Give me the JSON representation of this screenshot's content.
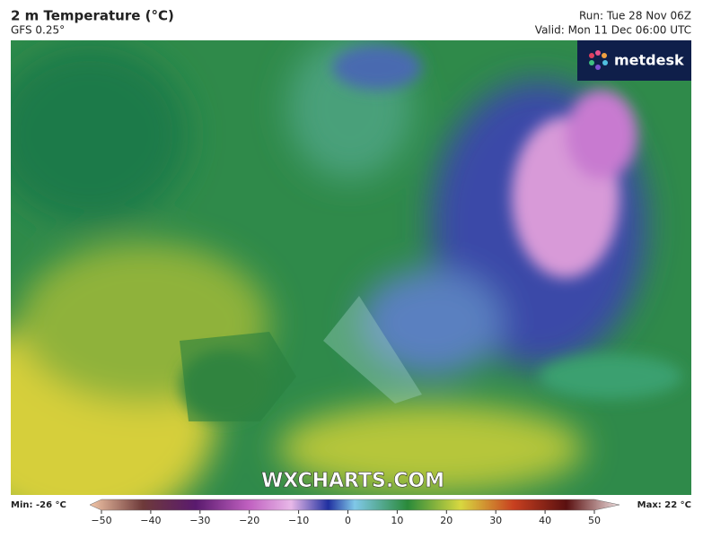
{
  "header": {
    "title": "2 m Temperature (°C)",
    "subtitle": "GFS 0.25°",
    "run": "Run: Tue 28 Nov 06Z",
    "valid": "Valid: Mon 11 Dec 06:00 UTC"
  },
  "logo": "metdesk",
  "watermark": "WXCHARTS.COM",
  "colorbar": {
    "min_label": "Min: -26 °C",
    "max_label": "Max: 22 °C",
    "ticks": [
      {
        "value": -50,
        "label": "−50"
      },
      {
        "value": -40,
        "label": "−40"
      },
      {
        "value": -30,
        "label": "−30"
      },
      {
        "value": -20,
        "label": "−20"
      },
      {
        "value": -10,
        "label": "−10"
      },
      0,
      10,
      20,
      30,
      40,
      50
    ]
  }
}
